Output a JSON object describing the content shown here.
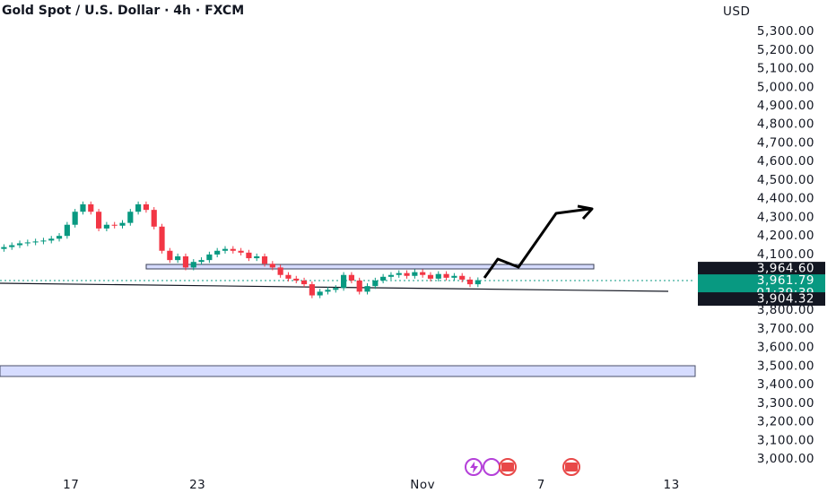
{
  "chart_data": {
    "type": "candlestick",
    "title": "Gold Spot / U.S. Dollar · 4h · FXCM",
    "y_axis_label": "USD",
    "up_color": "#089981",
    "down_color": "#f23645",
    "open": [
      4130,
      4140,
      4150,
      4160,
      4165,
      4170,
      4175,
      4185,
      4200,
      4260,
      4330,
      4370,
      4330,
      4240,
      4260,
      4255,
      4270,
      4330,
      4370,
      4340,
      4250,
      4120,
      4070,
      4090,
      4030,
      4060,
      4070,
      4100,
      4120,
      4130,
      4120,
      4110,
      4080,
      4090,
      4050,
      4030,
      3990,
      3970,
      3960,
      3940,
      3880,
      3900,
      3910,
      3920,
      3990,
      3960,
      3900,
      3930,
      3960,
      3980,
      3990,
      4000,
      3985,
      4005,
      3990,
      3970,
      3995,
      3975,
      3985,
      3965,
      3940
    ],
    "high": [
      4155,
      4165,
      4175,
      4180,
      4185,
      4190,
      4200,
      4215,
      4275,
      4345,
      4385,
      4385,
      4345,
      4275,
      4275,
      4285,
      4345,
      4385,
      4385,
      4355,
      4265,
      4135,
      4105,
      4105,
      4075,
      4085,
      4115,
      4135,
      4145,
      4145,
      4135,
      4125,
      4105,
      4105,
      4065,
      4045,
      4005,
      3985,
      3975,
      3955,
      3915,
      3925,
      3935,
      4005,
      4005,
      3975,
      3945,
      3975,
      3995,
      4005,
      4015,
      4015,
      4020,
      4020,
      4005,
      4010,
      4010,
      4000,
      4000,
      3980,
      3976.79
    ],
    "low": [
      4115,
      4125,
      4135,
      4145,
      4150,
      4155,
      4160,
      4170,
      4185,
      4245,
      4315,
      4315,
      4225,
      4225,
      4240,
      4240,
      4255,
      4315,
      4325,
      4235,
      4105,
      4055,
      4055,
      4015,
      4015,
      4045,
      4055,
      4085,
      4105,
      4105,
      4095,
      4065,
      4065,
      4035,
      4015,
      3975,
      3955,
      3945,
      3925,
      3865,
      3865,
      3885,
      3895,
      3905,
      3945,
      3885,
      3885,
      3915,
      3945,
      3965,
      3975,
      3970,
      3970,
      3975,
      3955,
      3955,
      3960,
      3960,
      3950,
      3925,
      3925
    ],
    "close": [
      4140,
      4150,
      4160,
      4165,
      4170,
      4175,
      4185,
      4200,
      4260,
      4330,
      4370,
      4330,
      4240,
      4260,
      4255,
      4270,
      4330,
      4370,
      4340,
      4250,
      4120,
      4070,
      4090,
      4030,
      4060,
      4070,
      4100,
      4120,
      4130,
      4120,
      4110,
      4080,
      4090,
      4050,
      4030,
      3990,
      3970,
      3960,
      3940,
      3880,
      3900,
      3910,
      3920,
      3990,
      3960,
      3900,
      3930,
      3960,
      3980,
      3990,
      4000,
      3985,
      4005,
      3990,
      3970,
      3995,
      3975,
      3985,
      3965,
      3940,
      3961.79
    ],
    "xlim": [
      0,
      88
    ],
    "xticks": [
      {
        "value": 9,
        "label": "17"
      },
      {
        "value": 25,
        "label": "23"
      },
      {
        "value": 53.5,
        "label": "Nov"
      },
      {
        "value": 68.5,
        "label": "7"
      },
      {
        "value": 85,
        "label": "13"
      }
    ],
    "ylim": [
      2817,
      5469
    ],
    "yticks": [
      {
        "value": 3000,
        "label": "3,000.00"
      },
      {
        "value": 3100,
        "label": "3,100.00"
      },
      {
        "value": 3200,
        "label": "3,200.00"
      },
      {
        "value": 3300,
        "label": "3,300.00"
      },
      {
        "value": 3400,
        "label": "3,400.00"
      },
      {
        "value": 3500,
        "label": "3,500.00"
      },
      {
        "value": 3600,
        "label": "3,600.00"
      },
      {
        "value": 3700,
        "label": "3,700.00"
      },
      {
        "value": 3800,
        "label": "3,800.00"
      },
      {
        "value": 4100,
        "label": "4,100.00"
      },
      {
        "value": 4200,
        "label": "4,200.00"
      },
      {
        "value": 4300,
        "label": "4,300.00"
      },
      {
        "value": 4400,
        "label": "4,400.00"
      },
      {
        "value": 4500,
        "label": "4,500.00"
      },
      {
        "value": 4600,
        "label": "4,600.00"
      },
      {
        "value": 4700,
        "label": "4,700.00"
      },
      {
        "value": 4800,
        "label": "4,800.00"
      },
      {
        "value": 4900,
        "label": "4,900.00"
      },
      {
        "value": 5000,
        "label": "5,000.00"
      },
      {
        "value": 5100,
        "label": "5,100.00"
      },
      {
        "value": 5200,
        "label": "5,200.00"
      },
      {
        "value": 5300,
        "label": "5,300.00"
      }
    ],
    "price_labels": [
      {
        "value": 3964.6,
        "label": "3,964.60",
        "color": "#131722"
      },
      {
        "value": 3961.79,
        "label": "3,961.79",
        "countdown": "01:39:39",
        "color": "#089981"
      },
      {
        "value": 3904.32,
        "label": "3,904.32",
        "color": "#131722"
      }
    ]
  }
}
